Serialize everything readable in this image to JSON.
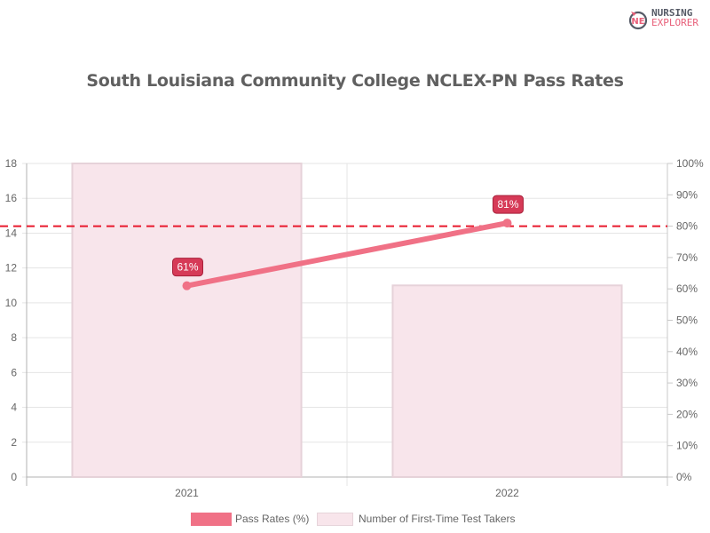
{
  "logo": {
    "line1": "NURSING",
    "line2": "EXPLORER",
    "icon_letters": "NE"
  },
  "title": "South Louisiana Community College NCLEX-PN Pass Rates",
  "legend": [
    {
      "label": "Pass Rates (%)",
      "color": "#f07186"
    },
    {
      "label": "Number of First-Time Test Takers",
      "color": "#f8e5eb",
      "border": "#e6d4da"
    }
  ],
  "colors": {
    "line": "#f07186",
    "bar_fill": "#f8e5eb",
    "bar_border": "#e6d2d9",
    "label_bg": "#d63a57",
    "label_border": "#a8213b",
    "threshold": "#e8192c",
    "grid": "#e5e5e5",
    "axis_text": "#666666"
  },
  "chart_data": {
    "type": "bar",
    "title": "South Louisiana Community College NCLEX-PN Pass Rates",
    "categories": [
      "2021",
      "2022"
    ],
    "series": [
      {
        "name": "Number of First-Time Test Takers",
        "type": "bar",
        "axis": "left",
        "values": [
          18,
          11
        ]
      },
      {
        "name": "Pass Rates (%)",
        "type": "line",
        "axis": "right",
        "values": [
          61,
          81
        ],
        "data_labels": [
          "61%",
          "81%"
        ]
      }
    ],
    "annotations": [
      {
        "type": "horizontal-dashed-line",
        "axis": "right",
        "value": 80,
        "color": "#e8192c"
      }
    ],
    "y_left": {
      "range": [
        0,
        18
      ],
      "ticks": [
        "0",
        "2",
        "4",
        "6",
        "8",
        "10",
        "12",
        "14",
        "16",
        "18"
      ]
    },
    "y_right": {
      "range": [
        0,
        100
      ],
      "ticks": [
        "0%",
        "10%",
        "20%",
        "30%",
        "40%",
        "50%",
        "60%",
        "70%",
        "80%",
        "90%",
        "100%"
      ]
    },
    "xlabel": "",
    "ylabel": "",
    "grid": true,
    "legend_position": "bottom"
  }
}
